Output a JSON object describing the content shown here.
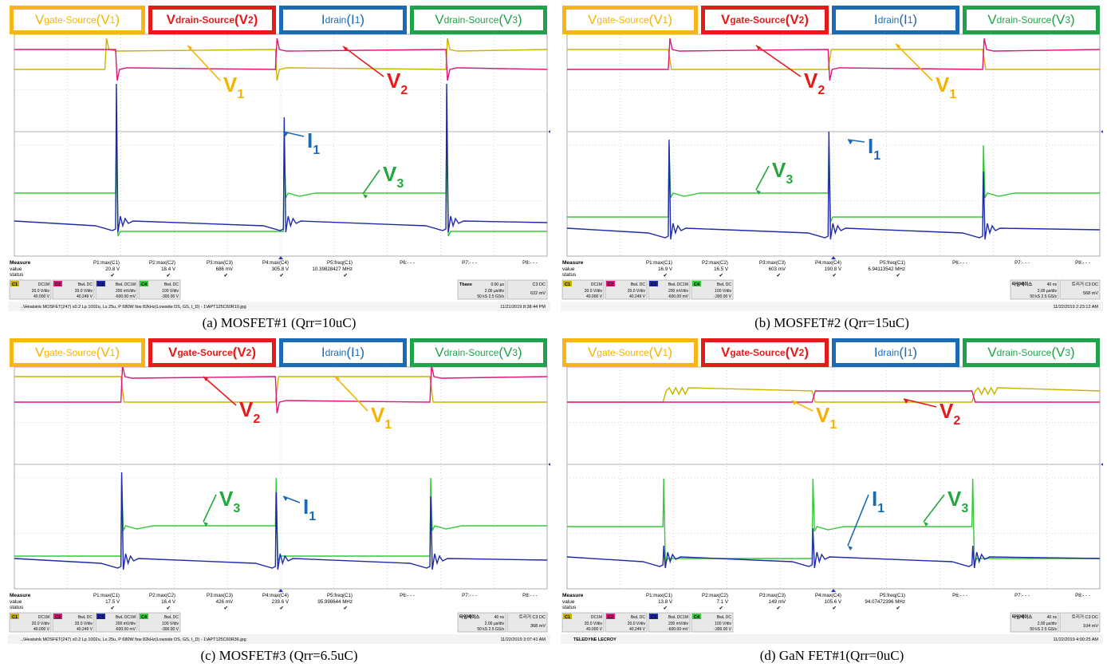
{
  "colors": {
    "v1": "#c8b400",
    "v2": "#e0157a",
    "i1": "#1e2aa8",
    "v3": "#36c83a",
    "box_yellow": "#f7b51a",
    "box_red": "#e51a1a",
    "box_blue": "#1a6ab5",
    "box_green": "#1fa24a",
    "label_yellow": "#f4b400",
    "label_red": "#e41b1b",
    "label_blue": "#1a6ab5",
    "label_green": "#24a83e"
  },
  "panels": [
    {
      "caption": "(a)  MOSFET#1  (Qrr=10uC)",
      "headers": [
        {
          "main": "V",
          "sub": "gate-Source",
          "paren": "(V",
          "psub": "1",
          "close": ")",
          "color": "yellow"
        },
        {
          "main": "V",
          "sub": "drain-Source",
          "paren": "(V",
          "psub": "2",
          "close": ")",
          "color": "red"
        },
        {
          "main": "I",
          "sub": "drain",
          "paren": "(I",
          "psub": "1",
          "close": ")",
          "color": "blue"
        },
        {
          "main": "V",
          "sub": "drain-Source",
          "paren": "(V",
          "psub": "3",
          "close": ")",
          "color": "green"
        }
      ],
      "labels": [
        {
          "text": "V",
          "sub": "1",
          "color": "yellow"
        },
        {
          "text": "V",
          "sub": "2",
          "color": "red"
        },
        {
          "text": "I",
          "sub": "1",
          "color": "blue"
        },
        {
          "text": "V",
          "sub": "3",
          "color": "green"
        }
      ],
      "measure": {
        "title": "Measure",
        "rows": [
          "value",
          "status"
        ],
        "params": [
          {
            "name": "P1:max(C1)",
            "value": "20.8 V"
          },
          {
            "name": "P2:max(C2)",
            "value": "18.4 V"
          },
          {
            "name": "P3:max(C3)",
            "value": "686 mV"
          },
          {
            "name": "P4:max(C4)",
            "value": "305.8 V"
          },
          {
            "name": "P5:freq(C1)",
            "value": "10.39828427 MHz"
          },
          {
            "name": "P6:- - -",
            "value": ""
          },
          {
            "name": "P7:- - -",
            "value": ""
          },
          {
            "name": "P8:- - -",
            "value": ""
          }
        ]
      },
      "channels": [
        {
          "id": "C1",
          "mode": "DC1M",
          "l1": "20.0 V/div",
          "l2": "40.000 V"
        },
        {
          "id": "C2",
          "mode": "BwL DC",
          "l1": "20.0 V/div",
          "l2": "40.249 V"
        },
        {
          "id": "C3",
          "mode": "BwL DC1M",
          "l1": "200 mV/div",
          "l2": "-600.00 mV"
        },
        {
          "id": "C4",
          "mode": "BwL DC",
          "l1": "100 V/div",
          "l2": "-300.00 V"
        }
      ],
      "timebase": {
        "title": "Tbase",
        "t1": "0.00 µs",
        "l1": "2.00 µs/div",
        "l2": "50 kS  2.5 GS/s",
        "trig_title": "C3 DC",
        "trig": "622 mV"
      },
      "footer_left": "..\\Heatsink MOSFET(247) x0.2  Lp 1002u, Ls 25u, P 680W fsw 82kHz(Lowside DS, GS, I_D) - 1\\APT125C60R10.jpg",
      "footer_right": "11/21/2019 8:38:44 PM"
    },
    {
      "caption": "(b)  MOSFET#2  (Qrr=15uC)",
      "headers": [
        {
          "main": "V",
          "sub": "gate-Source",
          "paren": "(V",
          "psub": "1",
          "close": ")",
          "color": "yellow"
        },
        {
          "main": "V",
          "sub": "gate-Source",
          "paren": "(V",
          "psub": "2",
          "close": ")",
          "color": "red"
        },
        {
          "main": "I",
          "sub": "drain",
          "paren": "(I",
          "psub": "1",
          "close": ")",
          "color": "blue"
        },
        {
          "main": "V",
          "sub": "drain-Source",
          "paren": "(V",
          "psub": "3",
          "close": ")",
          "color": "green"
        }
      ],
      "labels": [
        {
          "text": "V",
          "sub": "2",
          "color": "red"
        },
        {
          "text": "V",
          "sub": "1",
          "color": "yellow"
        },
        {
          "text": "I",
          "sub": "1",
          "color": "blue"
        },
        {
          "text": "V",
          "sub": "3",
          "color": "green"
        }
      ],
      "measure": {
        "title": "Measure",
        "rows": [
          "value",
          "status"
        ],
        "params": [
          {
            "name": "P1:max(C1)",
            "value": "16.9 V"
          },
          {
            "name": "P2:max(C2)",
            "value": "16.5 V"
          },
          {
            "name": "P3:max(C3)",
            "value": "603 mV"
          },
          {
            "name": "P4:max(C4)",
            "value": "190.8 V"
          },
          {
            "name": "P5:freq(C1)",
            "value": "6.94113542 MHz"
          },
          {
            "name": "P6:- - -",
            "value": ""
          },
          {
            "name": "P7:- - -",
            "value": ""
          },
          {
            "name": "P8:- - -",
            "value": ""
          }
        ]
      },
      "channels": [
        {
          "id": "C1",
          "mode": "DC1M",
          "l1": "20.0 V/div",
          "l2": "40.000 V"
        },
        {
          "id": "C2",
          "mode": "BwL DC",
          "l1": "20.0 V/div",
          "l2": "40.249 V"
        },
        {
          "id": "C3",
          "mode": "BwL DC1M",
          "l1": "200 mV/div",
          "l2": "-600.00 mV"
        },
        {
          "id": "C4",
          "mode": "BwL DC",
          "l1": "100 V/div",
          "l2": "-300.00 V"
        }
      ],
      "timebase": {
        "title": "타임베이스",
        "t1": "40 ns",
        "l1": "2.00 µs/div",
        "l2": "50 kS  2.5 GS/s",
        "trig_title": "트리거  C3 DC",
        "trig": "568 mV"
      },
      "footer_left": "",
      "footer_right": "11/22/2019 2:23:12 AM"
    },
    {
      "caption": "(c)  MOSFET#3  (Qrr=6.5uC)",
      "headers": [
        {
          "main": "V",
          "sub": "gate-Source",
          "paren": "(V",
          "psub": "1",
          "close": ")",
          "color": "yellow"
        },
        {
          "main": "V",
          "sub": "gate-Source",
          "paren": "(V",
          "psub": "2",
          "close": ")",
          "color": "red"
        },
        {
          "main": "I",
          "sub": "drain",
          "paren": "(I",
          "psub": "1",
          "close": ")",
          "color": "blue"
        },
        {
          "main": "V",
          "sub": "drain-Source",
          "paren": "(V",
          "psub": "3",
          "close": ")",
          "color": "green"
        }
      ],
      "labels": [
        {
          "text": "V",
          "sub": "2",
          "color": "red"
        },
        {
          "text": "V",
          "sub": "1",
          "color": "yellow"
        },
        {
          "text": "V",
          "sub": "3",
          "color": "green"
        },
        {
          "text": "I",
          "sub": "1",
          "color": "blue"
        }
      ],
      "measure": {
        "title": "Measure",
        "rows": [
          "value",
          "status"
        ],
        "params": [
          {
            "name": "P1:max(C1)",
            "value": "17.5 V"
          },
          {
            "name": "P2:max(C2)",
            "value": "16.4 V"
          },
          {
            "name": "P3:max(C3)",
            "value": "426 mV"
          },
          {
            "name": "P4:max(C4)",
            "value": "239.6 V"
          },
          {
            "name": "P5:freq(C1)",
            "value": "95.998644 MHz"
          },
          {
            "name": "P6:- - -",
            "value": ""
          },
          {
            "name": "P7:- - -",
            "value": ""
          },
          {
            "name": "P8:- - -",
            "value": ""
          }
        ]
      },
      "channels": [
        {
          "id": "C1",
          "mode": "DC1M",
          "l1": "20.0 V/div",
          "l2": "40.000 V"
        },
        {
          "id": "C2",
          "mode": "BwL DC",
          "l1": "20.0 V/div",
          "l2": "40.249 V"
        },
        {
          "id": "C3",
          "mode": "BwL DC1M",
          "l1": "200 mV/div",
          "l2": "-600.00 mV"
        },
        {
          "id": "C4",
          "mode": "BwL DC",
          "l1": "100 V/div",
          "l2": "-300.00 V"
        }
      ],
      "timebase": {
        "title": "타임베이스",
        "t1": "40 ns",
        "l1": "2.00 µs/div",
        "l2": "50 kS  2.5 GS/s",
        "trig_title": "트리거  C3 DC",
        "trig": "368 mV"
      },
      "footer_left": "..\\Heatsink MOSFET(247) x0.2  Lp 1002u, Ls 25u, P 680W fsw 82kHz(Lowside DS, GS, I_D) - 1\\APT125C60R36.jpg",
      "footer_right": "11/22/2019 3:07:41 AM"
    },
    {
      "caption": "(d)  GaN  FET#1(Qrr=0uC)",
      "headers": [
        {
          "main": "V",
          "sub": "gate-Source",
          "paren": "(V",
          "psub": "1",
          "close": ")",
          "color": "yellow"
        },
        {
          "main": "V",
          "sub": "gate-Source",
          "paren": "(V",
          "psub": "2",
          "close": ")",
          "color": "red"
        },
        {
          "main": "I",
          "sub": "drain",
          "paren": "(I",
          "psub": "1",
          "close": ")",
          "color": "blue"
        },
        {
          "main": "V",
          "sub": "drain-Source",
          "paren": "(V",
          "psub": "3",
          "close": ")",
          "color": "green"
        }
      ],
      "labels": [
        {
          "text": "V",
          "sub": "1",
          "color": "yellow"
        },
        {
          "text": "V",
          "sub": "2",
          "color": "red"
        },
        {
          "text": "I",
          "sub": "1",
          "color": "blue"
        },
        {
          "text": "V",
          "sub": "3",
          "color": "green"
        }
      ],
      "measure": {
        "title": "Measure",
        "rows": [
          "value",
          "status"
        ],
        "params": [
          {
            "name": "P1:max(C1)",
            "value": "13.8 V"
          },
          {
            "name": "P2:max(C2)",
            "value": "7.1 V"
          },
          {
            "name": "P3:max(C3)",
            "value": "149 mV"
          },
          {
            "name": "P4:max(C4)",
            "value": "105.6 V"
          },
          {
            "name": "P5:freq(C1)",
            "value": "94.07472396 MHz"
          },
          {
            "name": "P6:- - -",
            "value": ""
          },
          {
            "name": "P7:- - -",
            "value": ""
          },
          {
            "name": "P8:- - -",
            "value": ""
          }
        ]
      },
      "channels": [
        {
          "id": "C1",
          "mode": "DC1M",
          "l1": "20.0 V/div",
          "l2": "40.000 V"
        },
        {
          "id": "C2",
          "mode": "BwL DC",
          "l1": "20.0 V/div",
          "l2": "40.249 V"
        },
        {
          "id": "C3",
          "mode": "BwL DC1M",
          "l1": "200 mV/div",
          "l2": "-600.00 mV"
        },
        {
          "id": "C4",
          "mode": "BwL DC",
          "l1": "100 V/div",
          "l2": "-300.00 V"
        }
      ],
      "timebase": {
        "title": "타임베이스",
        "t1": "40 ns",
        "l1": "2.00 µs/div",
        "l2": "50 kS  2.5 GS/s",
        "trig_title": "트리거  C3 DC",
        "trig": "104 mV"
      },
      "footer_left": "TELEDYNE LECROY",
      "footer_right": "11/22/2019 4:00:25 AM"
    }
  ],
  "chart_data": [
    {
      "type": "line",
      "title": "(a)  MOSFET#1  (Qrr=10uC)",
      "x_unit": "divisions (2.00 µs/div)",
      "xlim": [
        0,
        10
      ],
      "series": [
        {
          "name": "Vgate-Source(V1)",
          "channel": "C1",
          "peak": "20.8 V",
          "levels": [
            "low",
            "high",
            "low",
            "high"
          ],
          "transitions": [
            1.7,
            4.9,
            8.1
          ]
        },
        {
          "name": "Vdrain-Source(V2)",
          "channel": "C2",
          "peak": "18.4 V",
          "levels": [
            "high",
            "low",
            "high",
            "low"
          ],
          "transitions": [
            1.9,
            4.9,
            8.1
          ]
        },
        {
          "name": "Idrain(I1)",
          "channel": "C4",
          "peak": "305.8 V",
          "spikes": [
            1.9,
            5.05,
            8.1
          ]
        },
        {
          "name": "Vdrain-Source(V3)",
          "channel": "C3",
          "peak": "686 mV",
          "levels": [
            "high",
            "low",
            "high",
            "low"
          ],
          "transitions": [
            1.9,
            5.05,
            8.1
          ]
        }
      ]
    },
    {
      "type": "line",
      "title": "(b)  MOSFET#2  (Qrr=15uC)",
      "x_unit": "divisions (2.00 µs/div)",
      "xlim": [
        0,
        10
      ],
      "series": [
        {
          "name": "Vgate-Source(V1)",
          "channel": "C1",
          "peak": "16.9 V",
          "levels": [
            "high",
            "low",
            "high",
            "low"
          ],
          "transitions": [
            1.9,
            4.9,
            7.8
          ]
        },
        {
          "name": "Vgate-Source(V2)",
          "channel": "C2",
          "peak": "16.5 V",
          "levels": [
            "low",
            "high",
            "low",
            "high"
          ],
          "transitions": [
            1.9,
            4.9,
            7.8
          ]
        },
        {
          "name": "Idrain(I1)",
          "channel": "C4",
          "peak": "190.8 V",
          "spikes": [
            1.9,
            4.9,
            7.8
          ]
        },
        {
          "name": "Vdrain-Source(V3)",
          "channel": "C3",
          "peak": "603 mV",
          "levels": [
            "low",
            "high",
            "low",
            "high"
          ],
          "transitions": [
            1.9,
            4.9,
            7.8
          ]
        }
      ]
    },
    {
      "type": "line",
      "title": "(c)  MOSFET#3  (Qrr=6.5uC)",
      "x_unit": "divisions (2.00 µs/div)",
      "xlim": [
        0,
        10
      ],
      "series": [
        {
          "name": "Vgate-Source(V1)",
          "channel": "C1",
          "peak": "17.5 V",
          "levels": [
            "high",
            "low",
            "high",
            "low"
          ],
          "transitions": [
            2.0,
            4.9,
            7.8
          ]
        },
        {
          "name": "Vgate-Source(V2)",
          "channel": "C2",
          "peak": "16.4 V",
          "levels": [
            "low",
            "high",
            "low",
            "high"
          ],
          "transitions": [
            2.0,
            4.9,
            7.8
          ]
        },
        {
          "name": "Idrain(I1)",
          "channel": "C4",
          "peak": "239.6 V",
          "spikes": [
            2.0,
            4.9,
            7.8
          ]
        },
        {
          "name": "Vdrain-Source(V3)",
          "channel": "C3",
          "peak": "426 mV",
          "levels": [
            "low",
            "high",
            "low",
            "high"
          ],
          "transitions": [
            2.0,
            4.9,
            7.8
          ]
        }
      ]
    },
    {
      "type": "line",
      "title": "(d)  GaN  FET#1(Qrr=0uC)",
      "x_unit": "divisions (2.00 µs/div)",
      "xlim": [
        0,
        10
      ],
      "series": [
        {
          "name": "Vgate-Source(V1)",
          "channel": "C1",
          "peak": "13.8 V",
          "levels": [
            "low",
            "high",
            "low",
            "high"
          ],
          "transitions": [
            1.8,
            4.6,
            7.6
          ]
        },
        {
          "name": "Vgate-Source(V2)",
          "channel": "C2",
          "peak": "7.1 V",
          "levels": [
            "low",
            "high",
            "low"
          ],
          "transitions": [
            4.6,
            7.6
          ]
        },
        {
          "name": "Idrain(I1)",
          "channel": "C4",
          "peak": "105.6 V",
          "spikes": [
            1.8,
            4.6,
            7.6
          ]
        },
        {
          "name": "Vdrain-Source(V3)",
          "channel": "C3",
          "peak": "149 mV",
          "levels": [
            "high",
            "low",
            "high",
            "low"
          ],
          "transitions": [
            1.8,
            4.6,
            7.6
          ]
        }
      ]
    }
  ]
}
